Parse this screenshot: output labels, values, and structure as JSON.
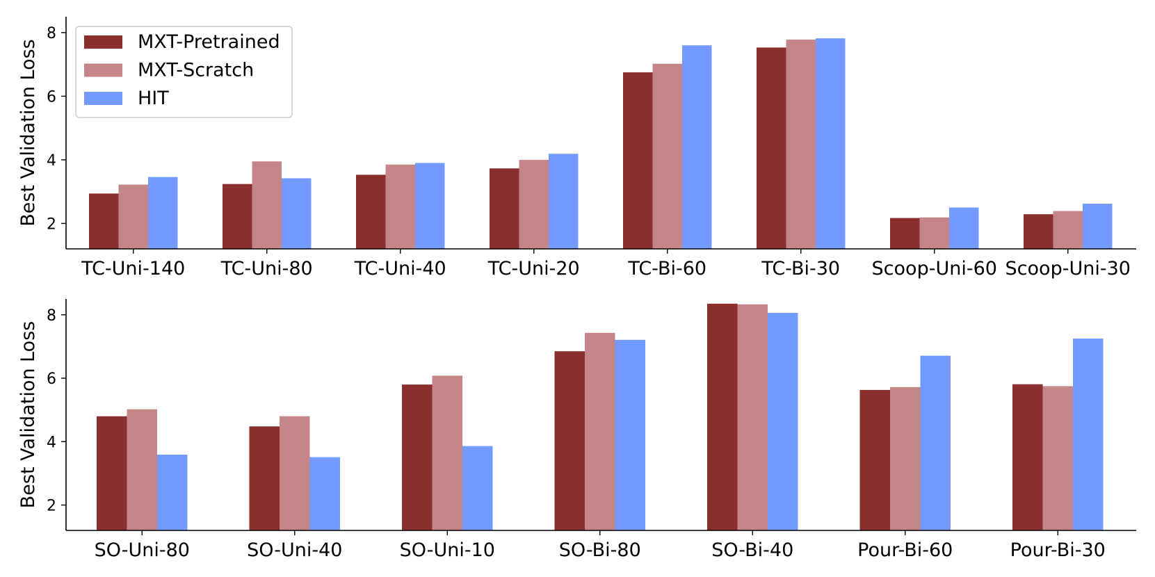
{
  "series_colors": {
    "MXT-Pretrained": "#8b2e2e",
    "MXT-Scratch": "#c5868a",
    "HIT": "#739bff"
  },
  "chart_data": [
    {
      "type": "bar",
      "title": "",
      "xlabel": "",
      "ylabel": "Best Validation Loss",
      "ylim": [
        1.2,
        8.5
      ],
      "yticks": [
        "2",
        "4",
        "6",
        "8"
      ],
      "legend_position": "top-left",
      "categories": [
        "TC-Uni-140",
        "TC-Uni-80",
        "TC-Uni-40",
        "TC-Uni-20",
        "TC-Bi-60",
        "TC-Bi-30",
        "Scoop-Uni-60",
        "Scoop-Uni-30"
      ],
      "series": [
        {
          "name": "MXT-Pretrained",
          "values": [
            2.94,
            3.24,
            3.53,
            3.73,
            6.75,
            7.53,
            2.17,
            2.29
          ]
        },
        {
          "name": "MXT-Scratch",
          "values": [
            3.22,
            3.95,
            3.85,
            4.0,
            7.02,
            7.78,
            2.19,
            2.39
          ]
        },
        {
          "name": "HIT",
          "values": [
            3.46,
            3.42,
            3.9,
            4.19,
            7.6,
            7.82,
            2.5,
            2.62
          ]
        }
      ]
    },
    {
      "type": "bar",
      "title": "",
      "xlabel": "",
      "ylabel": "Best Validation Loss",
      "ylim": [
        1.2,
        8.5
      ],
      "yticks": [
        "2",
        "4",
        "6",
        "8"
      ],
      "categories": [
        "SO-Uni-80",
        "SO-Uni-40",
        "SO-Uni-10",
        "SO-Bi-80",
        "SO-Bi-40",
        "Pour-Bi-60",
        "Pour-Bi-30"
      ],
      "series": [
        {
          "name": "MXT-Pretrained",
          "values": [
            4.8,
            4.48,
            5.8,
            6.85,
            8.35,
            5.63,
            5.81
          ]
        },
        {
          "name": "MXT-Scratch",
          "values": [
            5.02,
            4.8,
            6.08,
            7.43,
            8.33,
            5.72,
            5.75
          ]
        },
        {
          "name": "HIT",
          "values": [
            3.59,
            3.51,
            3.86,
            7.21,
            8.06,
            6.71,
            7.25
          ]
        }
      ]
    }
  ]
}
